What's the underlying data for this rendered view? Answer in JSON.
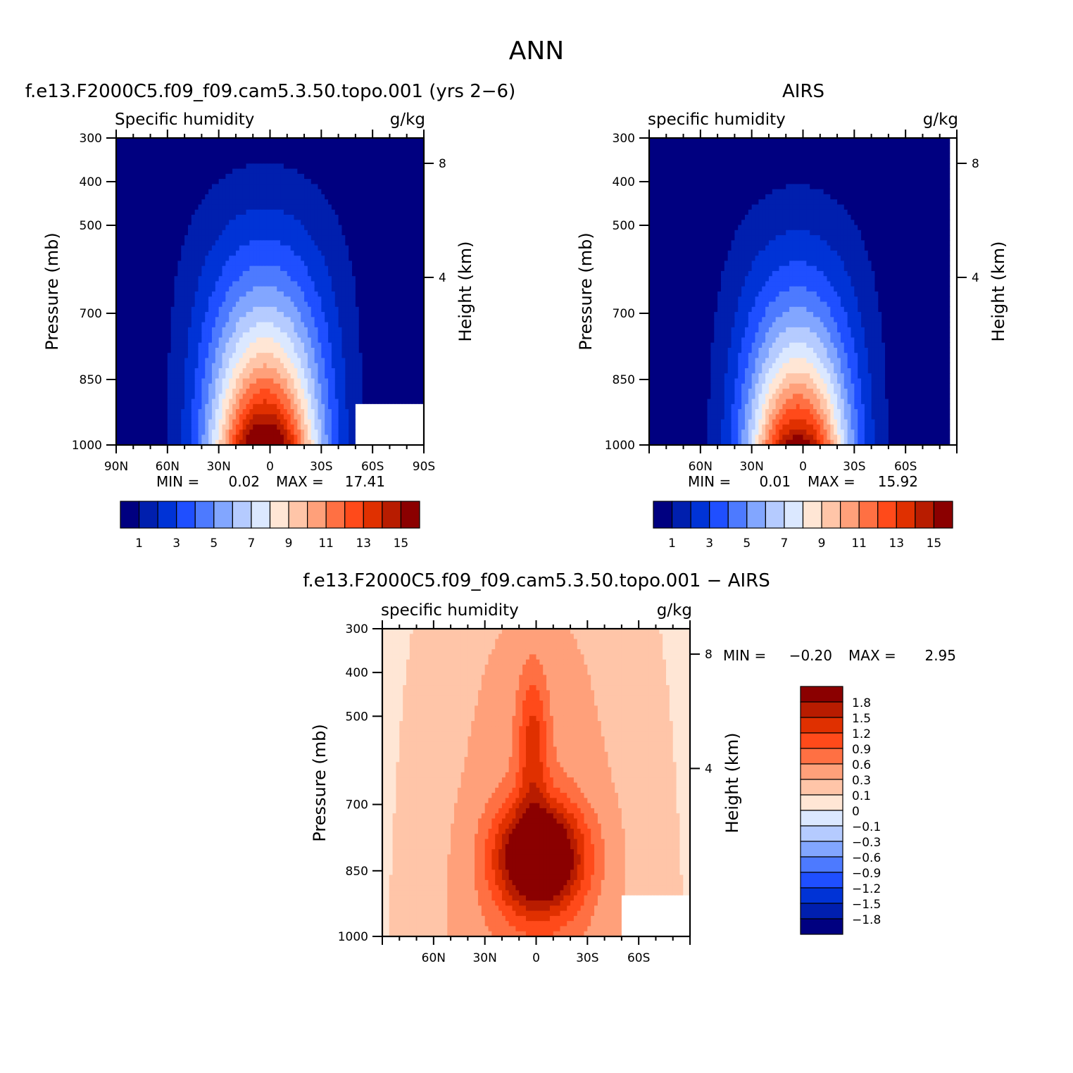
{
  "figure_title": "ANN",
  "chart_data": [
    {
      "type": "heatmap",
      "id": "model",
      "title": "f.e13.F2000C5.f09_f09.cam5.3.50.topo.001 (yrs 2−6)",
      "left_label": "Specific humidity",
      "right_label": "g/kg",
      "ylabel": "Pressure (mb)",
      "y2label": "Height (km)",
      "y_ticks": [
        "300",
        "400",
        "500",
        "700",
        "850",
        "1000"
      ],
      "y2_ticks": [
        "8",
        "4"
      ],
      "x_ticks": [
        "90N",
        "60N",
        "30N",
        "0",
        "30S",
        "60S",
        "90S"
      ],
      "min_label": "MIN =",
      "min_value": "0.02",
      "max_label": "MAX =",
      "max_value": "17.41",
      "colorbar_labels": [
        "1",
        "3",
        "5",
        "7",
        "9",
        "11",
        "13",
        "15"
      ],
      "levels": [
        1,
        2,
        3,
        4,
        5,
        6,
        7,
        8,
        9,
        10,
        11,
        12,
        13,
        14,
        15
      ],
      "colors": [
        "#000080",
        "#001fae",
        "#0033d6",
        "#1f4fff",
        "#4d7aff",
        "#82a6ff",
        "#b5cbff",
        "#dbe8ff",
        "#ffe6d5",
        "#ffc5a8",
        "#ffa07a",
        "#ff7043",
        "#ff4a1a",
        "#e03000",
        "#b81c00",
        "#8b0000"
      ],
      "field": {
        "peak": 17.41,
        "center_lat": -3,
        "base": 0.3,
        "lat_scale": 32,
        "scale_height": 2.0
      },
      "missing": [
        {
          "lat_from": 50,
          "lat_to": 90,
          "p_from": 910,
          "p_to": 1000
        }
      ]
    },
    {
      "type": "heatmap",
      "id": "obs",
      "title": "AIRS",
      "left_label": "specific humidity",
      "right_label": "g/kg",
      "ylabel": "Pressure (mb)",
      "y2label": "Height (km)",
      "y_ticks": [
        "300",
        "400",
        "500",
        "700",
        "850",
        "1000"
      ],
      "y2_ticks": [
        "8",
        "4"
      ],
      "x_ticks": [
        "60N",
        "30N",
        "0",
        "30S",
        "60S"
      ],
      "min_label": "MIN =",
      "min_value": "0.01",
      "max_label": "MAX =",
      "max_value": "15.92",
      "colorbar_labels": [
        "1",
        "3",
        "5",
        "7",
        "9",
        "11",
        "13",
        "15"
      ],
      "levels": [
        1,
        2,
        3,
        4,
        5,
        6,
        7,
        8,
        9,
        10,
        11,
        12,
        13,
        14,
        15
      ],
      "colors": [
        "#000080",
        "#001fae",
        "#0033d6",
        "#1f4fff",
        "#4d7aff",
        "#82a6ff",
        "#b5cbff",
        "#dbe8ff",
        "#ffe6d5",
        "#ffc5a8",
        "#ffa07a",
        "#ff7043",
        "#ff4a1a",
        "#e03000",
        "#b81c00",
        "#8b0000"
      ],
      "field": {
        "peak": 15.92,
        "center_lat": -3,
        "base": 0.3,
        "lat_scale": 30,
        "scale_height": 1.8
      },
      "missing": [
        {
          "lat_from": 86,
          "lat_to": 90,
          "p_from": 300,
          "p_to": 1000
        }
      ]
    },
    {
      "type": "heatmap",
      "id": "diff",
      "title": "f.e13.F2000C5.f09_f09.cam5.3.50.topo.001 − AIRS",
      "left_label": "specific humidity",
      "right_label": "g/kg",
      "ylabel": "Pressure (mb)",
      "y2label": "Height (km)",
      "y_ticks": [
        "300",
        "400",
        "500",
        "700",
        "850",
        "1000"
      ],
      "y2_ticks": [
        "8",
        "4"
      ],
      "x_ticks": [
        "60N",
        "30N",
        "0",
        "30S",
        "60S"
      ],
      "min_label": "MIN =",
      "min_value": "−0.20",
      "max_label": "MAX =",
      "max_value": "2.95",
      "colorbar_labels": [
        "1.8",
        "1.5",
        "1.2",
        "0.9",
        "0.6",
        "0.3",
        "0.1",
        "0",
        "−0.1",
        "−0.3",
        "−0.6",
        "−0.9",
        "−1.2",
        "−1.5",
        "−1.8"
      ],
      "levels": [
        -1.8,
        -1.5,
        -1.2,
        -0.9,
        -0.6,
        -0.3,
        -0.1,
        0,
        0.1,
        0.3,
        0.6,
        0.9,
        1.2,
        1.5,
        1.8
      ],
      "colors": [
        "#000080",
        "#001fae",
        "#0033d6",
        "#1f4fff",
        "#4d7aff",
        "#82a6ff",
        "#b5cbff",
        "#dbe8ff",
        "#ffe6d5",
        "#ffc5a8",
        "#ffa07a",
        "#ff7043",
        "#ff4a1a",
        "#e03000",
        "#b81c00",
        "#8b0000"
      ],
      "field": {
        "peak": 2.95,
        "center_lat": 0,
        "base": 0.08,
        "lat_scale": 18,
        "scale_height": 1.4
      },
      "missing": [
        {
          "lat_from": 50,
          "lat_to": 90,
          "p_from": 910,
          "p_to": 1000
        }
      ]
    }
  ]
}
